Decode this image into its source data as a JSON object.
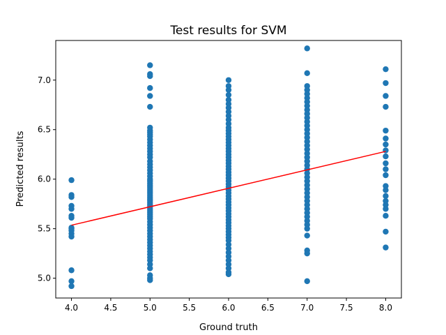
{
  "chart_data": {
    "type": "scatter",
    "title": "Test results for SVM",
    "xlabel": "Ground truth",
    "ylabel": "Predicted results",
    "xlim": [
      3.8,
      8.2
    ],
    "ylim": [
      4.8,
      7.4
    ],
    "xticks": [
      "4.0",
      "4.5",
      "5.0",
      "5.5",
      "6.0",
      "6.5",
      "7.0",
      "7.5",
      "8.0"
    ],
    "yticks": [
      "5.0",
      "5.5",
      "6.0",
      "6.5",
      "7.0"
    ],
    "grid": false,
    "point_color": "#1f77b4",
    "line_color": "#ff0000",
    "fit_line": {
      "x": [
        4.0,
        8.0
      ],
      "y": [
        5.535,
        6.28
      ]
    },
    "points": {
      "x4": [
        5.99,
        5.84,
        5.82,
        5.73,
        5.7,
        5.63,
        5.61,
        5.51,
        5.5,
        5.48,
        5.45,
        5.42,
        5.08,
        4.97,
        4.92
      ],
      "x5": [
        7.15,
        7.06,
        7.04,
        6.92,
        6.84,
        6.73,
        6.52,
        6.49,
        6.47,
        6.45,
        6.43,
        6.4,
        6.37,
        6.34,
        6.31,
        6.28,
        6.25,
        6.22,
        6.18,
        6.15,
        6.12,
        6.09,
        6.06,
        6.03,
        6.0,
        5.98,
        5.96,
        5.94,
        5.92,
        5.9,
        5.88,
        5.86,
        5.84,
        5.82,
        5.8,
        5.78,
        5.76,
        5.74,
        5.72,
        5.7,
        5.68,
        5.66,
        5.64,
        5.62,
        5.6,
        5.57,
        5.54,
        5.51,
        5.48,
        5.45,
        5.42,
        5.39,
        5.36,
        5.33,
        5.3,
        5.27,
        5.24,
        5.21,
        5.18,
        5.14,
        5.1,
        5.03,
        5.0,
        4.98
      ],
      "x6": [
        7.0,
        6.94,
        6.9,
        6.85,
        6.8,
        6.76,
        6.72,
        6.68,
        6.64,
        6.6,
        6.56,
        6.52,
        6.49,
        6.46,
        6.43,
        6.4,
        6.37,
        6.34,
        6.31,
        6.28,
        6.25,
        6.22,
        6.19,
        6.16,
        6.13,
        6.1,
        6.07,
        6.04,
        6.01,
        5.98,
        5.95,
        5.92,
        5.89,
        5.86,
        5.83,
        5.8,
        5.77,
        5.74,
        5.71,
        5.68,
        5.65,
        5.62,
        5.59,
        5.56,
        5.53,
        5.5,
        5.47,
        5.44,
        5.41,
        5.38,
        5.34,
        5.3,
        5.26,
        5.22,
        5.18,
        5.14,
        5.1,
        5.06,
        5.04
      ],
      "x7": [
        7.32,
        7.07,
        6.94,
        6.9,
        6.86,
        6.82,
        6.78,
        6.74,
        6.7,
        6.66,
        6.62,
        6.58,
        6.54,
        6.5,
        6.46,
        6.42,
        6.38,
        6.34,
        6.3,
        6.26,
        6.22,
        6.18,
        6.14,
        6.1,
        6.06,
        6.02,
        5.98,
        5.94,
        5.9,
        5.86,
        5.82,
        5.78,
        5.74,
        5.7,
        5.66,
        5.62,
        5.58,
        5.54,
        5.5,
        5.43,
        5.28,
        5.25,
        4.97
      ],
      "x8": [
        7.11,
        6.97,
        6.84,
        6.73,
        6.49,
        6.41,
        6.35,
        6.29,
        6.23,
        6.16,
        6.1,
        6.04,
        5.93,
        5.89,
        5.83,
        5.78,
        5.74,
        5.7,
        5.63,
        5.47,
        5.31
      ]
    }
  }
}
